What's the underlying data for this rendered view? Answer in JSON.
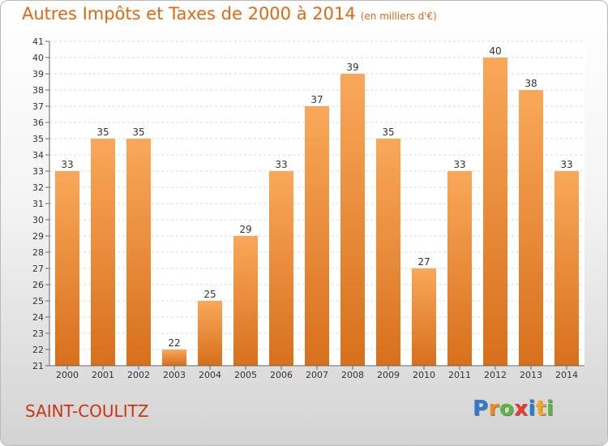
{
  "title": "Autres Impôts et Taxes de 2000 à 2014",
  "unit_note": "(en milliers d'€)",
  "town": "SAINT-COULITZ",
  "logo": {
    "letters": [
      "P",
      "r",
      "o",
      "x",
      "i",
      "t",
      "i"
    ],
    "colors": [
      "#2b7bd0",
      "#f08a1a",
      "#5cb83a",
      "#e63b2e",
      "#2b7bd0",
      "#f5a623",
      "#5cb83a"
    ]
  },
  "colors": {
    "bar_top": "#f9a85a",
    "bar_bottom": "#d7701c",
    "title": "#e06810",
    "town": "#cc3311"
  },
  "chart_data": {
    "type": "bar",
    "title": "Autres Impôts et Taxes de 2000 à 2014",
    "subtitle": "(en milliers d'€)",
    "categories": [
      "2000",
      "2001",
      "2002",
      "2003",
      "2004",
      "2005",
      "2006",
      "2007",
      "2008",
      "2009",
      "2010",
      "2011",
      "2012",
      "2013",
      "2014"
    ],
    "values": [
      33,
      35,
      35,
      22,
      25,
      29,
      33,
      37,
      39,
      35,
      27,
      33,
      40,
      38,
      33
    ],
    "ylim": [
      21,
      41
    ],
    "yticks": [
      21,
      22,
      23,
      24,
      25,
      26,
      27,
      28,
      29,
      30,
      31,
      32,
      33,
      34,
      35,
      36,
      37,
      38,
      39,
      40,
      41
    ],
    "grid": true,
    "data_labels": true
  }
}
